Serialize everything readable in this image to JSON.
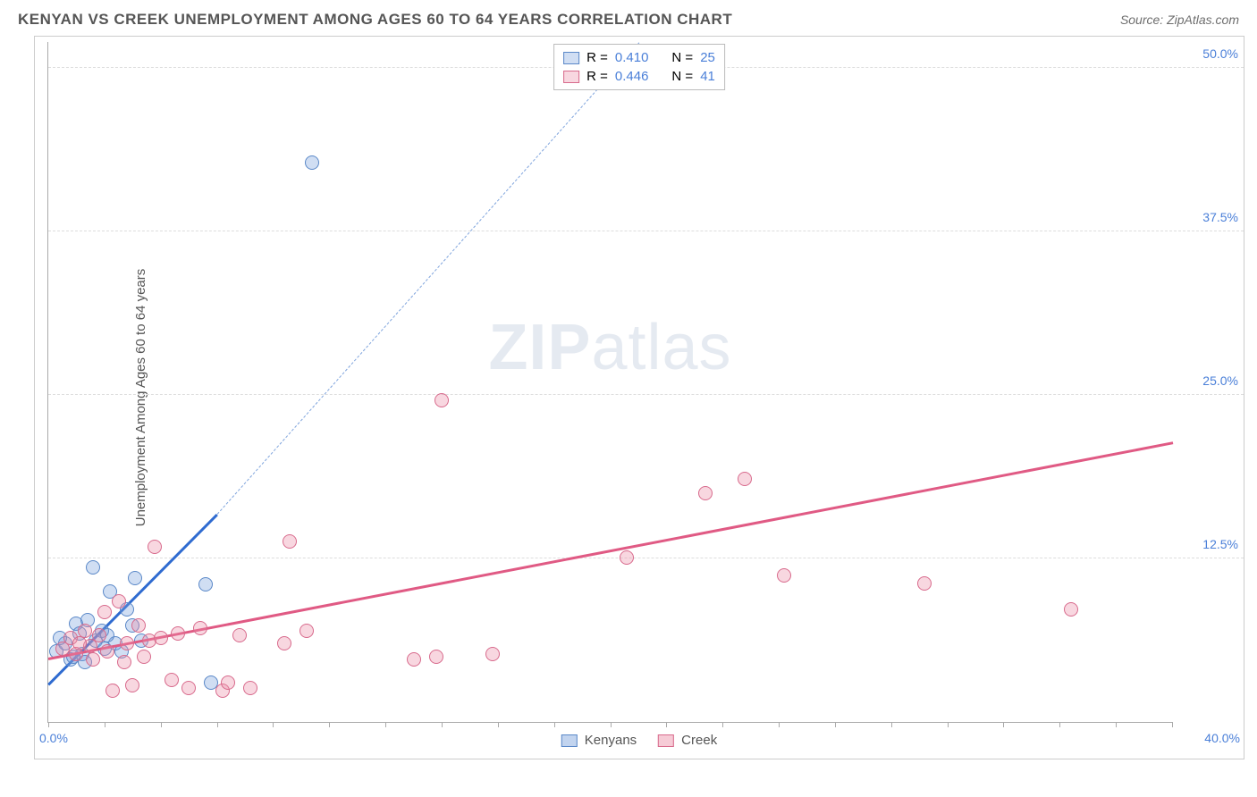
{
  "header": {
    "title": "KENYAN VS CREEK UNEMPLOYMENT AMONG AGES 60 TO 64 YEARS CORRELATION CHART",
    "source": "Source: ZipAtlas.com"
  },
  "ylabel": "Unemployment Among Ages 60 to 64 years",
  "watermark": {
    "bold": "ZIP",
    "light": "atlas"
  },
  "chart": {
    "type": "scatter",
    "xlim": [
      0,
      40
    ],
    "ylim": [
      0,
      52
    ],
    "x_origin_label": "0.0%",
    "x_max_label": "40.0%",
    "y_ticks": [
      {
        "v": 12.5,
        "label": "12.5%"
      },
      {
        "v": 25.0,
        "label": "25.0%"
      },
      {
        "v": 37.5,
        "label": "37.5%"
      },
      {
        "v": 50.0,
        "label": "50.0%"
      }
    ],
    "x_ticks_minor": [
      0,
      2,
      4,
      6,
      8,
      10,
      12,
      14,
      16,
      18,
      20,
      22,
      24,
      26,
      28,
      30,
      32,
      34,
      36,
      38,
      40
    ],
    "background_color": "#ffffff",
    "grid_color": "#dddddd",
    "axis_color": "#aaaaaa",
    "marker_radius": 8,
    "marker_border_width": 1.2,
    "series": [
      {
        "name": "Kenyans",
        "fill": "rgba(120,160,220,0.35)",
        "stroke": "#5a88c8",
        "trend": {
          "x1": 0,
          "y1": 3.0,
          "x2": 6.0,
          "y2": 16.0,
          "color": "#2f6bd0",
          "width": 2.5
        },
        "trend_dash": {
          "x1": 6.0,
          "y1": 16.0,
          "x2": 21.0,
          "y2": 52.0,
          "color": "#7fa4dd"
        },
        "R": "0.410",
        "N": "25",
        "points": [
          [
            0.3,
            5.4
          ],
          [
            0.6,
            6.0
          ],
          [
            0.8,
            4.8
          ],
          [
            1.0,
            7.5
          ],
          [
            1.2,
            5.2
          ],
          [
            1.4,
            7.8
          ],
          [
            1.6,
            11.8
          ],
          [
            2.2,
            10.0
          ],
          [
            2.4,
            6.0
          ],
          [
            2.8,
            8.6
          ],
          [
            3.1,
            11.0
          ],
          [
            5.6,
            10.5
          ],
          [
            5.8,
            3.0
          ],
          [
            9.4,
            42.8
          ],
          [
            0.4,
            6.4
          ],
          [
            0.9,
            5.0
          ],
          [
            1.1,
            6.8
          ],
          [
            1.3,
            4.6
          ],
          [
            1.7,
            6.2
          ],
          [
            1.9,
            7.0
          ],
          [
            2.0,
            5.6
          ],
          [
            2.1,
            6.6
          ],
          [
            2.6,
            5.4
          ],
          [
            3.0,
            7.4
          ],
          [
            3.3,
            6.2
          ]
        ]
      },
      {
        "name": "Creek",
        "fill": "rgba(235,140,165,0.35)",
        "stroke": "#d86a8c",
        "trend": {
          "x1": 0,
          "y1": 5.0,
          "x2": 40.0,
          "y2": 21.5,
          "color": "#e05a84",
          "width": 2.5
        },
        "R": "0.446",
        "N": "41",
        "points": [
          [
            0.5,
            5.6
          ],
          [
            0.8,
            6.4
          ],
          [
            1.0,
            5.2
          ],
          [
            1.3,
            7.0
          ],
          [
            1.5,
            5.8
          ],
          [
            1.8,
            6.6
          ],
          [
            2.0,
            8.4
          ],
          [
            2.3,
            2.4
          ],
          [
            2.5,
            9.2
          ],
          [
            2.8,
            6.0
          ],
          [
            3.0,
            2.8
          ],
          [
            3.2,
            7.4
          ],
          [
            3.4,
            5.0
          ],
          [
            3.6,
            6.2
          ],
          [
            3.8,
            13.4
          ],
          [
            4.4,
            3.2
          ],
          [
            4.6,
            6.8
          ],
          [
            5.0,
            2.6
          ],
          [
            5.4,
            7.2
          ],
          [
            6.2,
            2.4
          ],
          [
            6.4,
            3.0
          ],
          [
            6.8,
            6.6
          ],
          [
            7.2,
            2.6
          ],
          [
            8.4,
            6.0
          ],
          [
            8.6,
            13.8
          ],
          [
            9.2,
            7.0
          ],
          [
            13.0,
            4.8
          ],
          [
            13.8,
            5.0
          ],
          [
            14.0,
            24.6
          ],
          [
            15.8,
            5.2
          ],
          [
            20.6,
            12.6
          ],
          [
            23.4,
            17.5
          ],
          [
            24.8,
            18.6
          ],
          [
            26.2,
            11.2
          ],
          [
            31.2,
            10.6
          ],
          [
            36.4,
            8.6
          ],
          [
            1.1,
            6.0
          ],
          [
            1.6,
            4.8
          ],
          [
            2.1,
            5.4
          ],
          [
            2.7,
            4.6
          ],
          [
            4.0,
            6.4
          ]
        ]
      }
    ],
    "legend_top": {
      "R_label": "R =",
      "N_label": "N ="
    },
    "legend_bottom": [
      {
        "label": "Kenyans",
        "fill": "rgba(120,160,220,0.45)",
        "stroke": "#5a88c8"
      },
      {
        "label": "Creek",
        "fill": "rgba(235,140,165,0.45)",
        "stroke": "#d86a8c"
      }
    ]
  }
}
